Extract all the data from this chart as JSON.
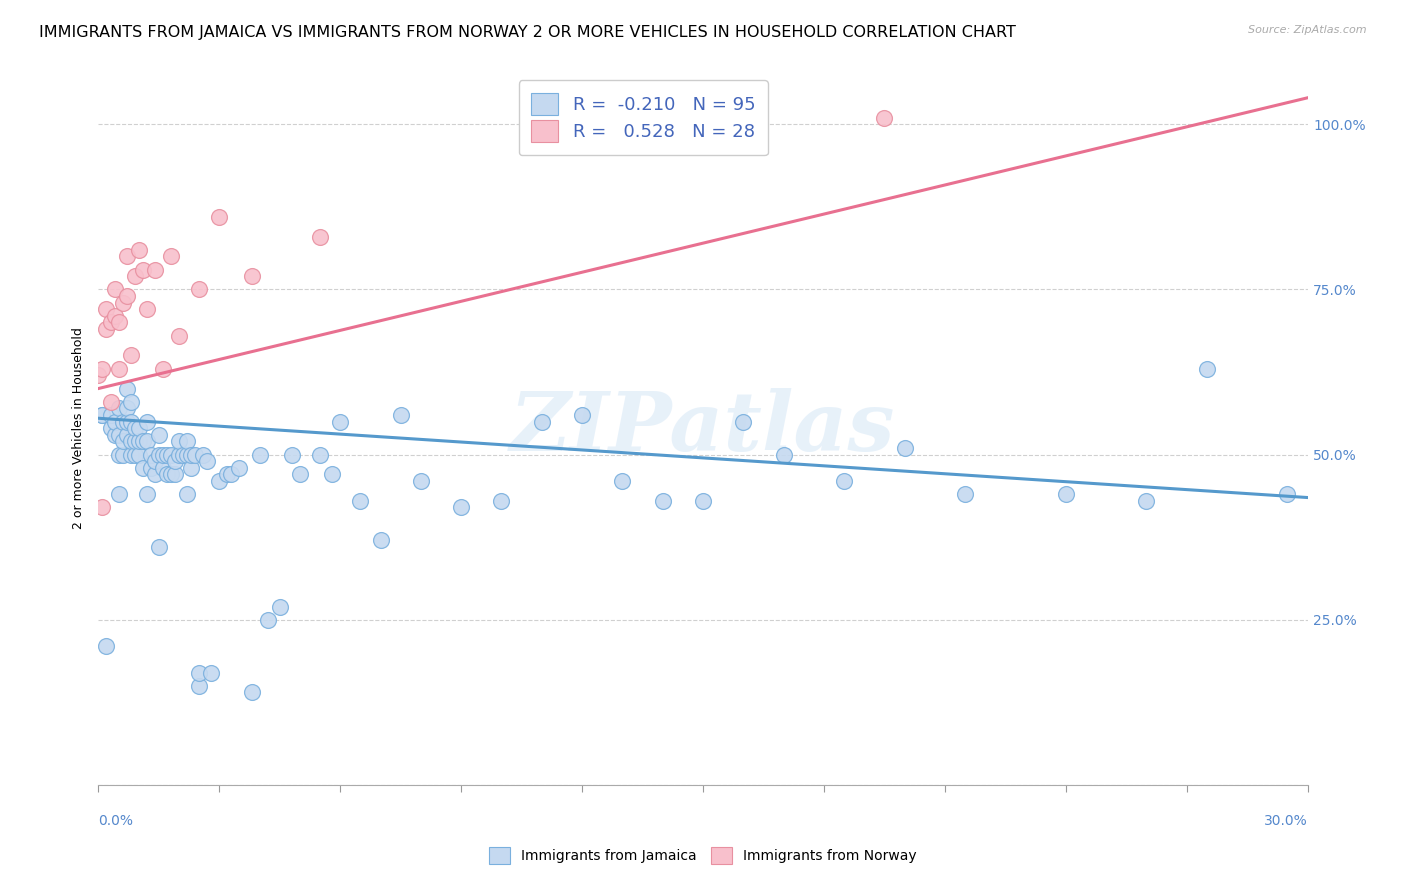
{
  "title": "IMMIGRANTS FROM JAMAICA VS IMMIGRANTS FROM NORWAY 2 OR MORE VEHICLES IN HOUSEHOLD CORRELATION CHART",
  "source": "Source: ZipAtlas.com",
  "ylabel": "2 or more Vehicles in Household",
  "xlim": [
    0.0,
    0.3
  ],
  "ylim": [
    0.0,
    1.08
  ],
  "watermark": "ZIPatlas",
  "legend_r_jamaica": "-0.210",
  "legend_n_jamaica": "95",
  "legend_r_norway": "0.528",
  "legend_n_norway": "28",
  "jamaica_face_color": "#c5d9f0",
  "norway_face_color": "#f8c0cc",
  "jamaica_edge_color": "#7ab0de",
  "norway_edge_color": "#e890a0",
  "jamaica_line_color": "#5599cc",
  "norway_line_color": "#e87090",
  "jamaica_scatter_x": [
    0.001,
    0.001,
    0.002,
    0.003,
    0.003,
    0.004,
    0.004,
    0.005,
    0.005,
    0.005,
    0.006,
    0.006,
    0.006,
    0.007,
    0.007,
    0.007,
    0.007,
    0.008,
    0.008,
    0.008,
    0.008,
    0.009,
    0.009,
    0.009,
    0.01,
    0.01,
    0.01,
    0.011,
    0.011,
    0.012,
    0.012,
    0.013,
    0.013,
    0.014,
    0.014,
    0.015,
    0.015,
    0.015,
    0.016,
    0.016,
    0.017,
    0.017,
    0.018,
    0.018,
    0.019,
    0.019,
    0.02,
    0.02,
    0.021,
    0.022,
    0.022,
    0.023,
    0.023,
    0.024,
    0.025,
    0.025,
    0.026,
    0.027,
    0.028,
    0.03,
    0.032,
    0.033,
    0.035,
    0.038,
    0.04,
    0.042,
    0.045,
    0.048,
    0.05,
    0.055,
    0.058,
    0.06,
    0.065,
    0.07,
    0.075,
    0.08,
    0.09,
    0.1,
    0.11,
    0.12,
    0.13,
    0.14,
    0.15,
    0.16,
    0.17,
    0.185,
    0.2,
    0.215,
    0.24,
    0.26,
    0.275,
    0.295,
    0.005,
    0.012,
    0.022
  ],
  "jamaica_scatter_y": [
    0.56,
    0.56,
    0.21,
    0.54,
    0.56,
    0.53,
    0.55,
    0.5,
    0.53,
    0.57,
    0.5,
    0.52,
    0.55,
    0.53,
    0.55,
    0.57,
    0.6,
    0.5,
    0.52,
    0.55,
    0.58,
    0.5,
    0.52,
    0.54,
    0.5,
    0.52,
    0.54,
    0.48,
    0.52,
    0.52,
    0.55,
    0.48,
    0.5,
    0.47,
    0.49,
    0.36,
    0.5,
    0.53,
    0.48,
    0.5,
    0.47,
    0.5,
    0.47,
    0.5,
    0.47,
    0.49,
    0.5,
    0.52,
    0.5,
    0.5,
    0.52,
    0.48,
    0.5,
    0.5,
    0.15,
    0.17,
    0.5,
    0.49,
    0.17,
    0.46,
    0.47,
    0.47,
    0.48,
    0.14,
    0.5,
    0.25,
    0.27,
    0.5,
    0.47,
    0.5,
    0.47,
    0.55,
    0.43,
    0.37,
    0.56,
    0.46,
    0.42,
    0.43,
    0.55,
    0.56,
    0.46,
    0.43,
    0.43,
    0.55,
    0.5,
    0.46,
    0.51,
    0.44,
    0.44,
    0.43,
    0.63,
    0.44,
    0.44,
    0.44,
    0.44
  ],
  "norway_scatter_x": [
    0.0,
    0.001,
    0.001,
    0.002,
    0.002,
    0.003,
    0.003,
    0.004,
    0.004,
    0.005,
    0.005,
    0.006,
    0.007,
    0.007,
    0.008,
    0.009,
    0.01,
    0.011,
    0.012,
    0.014,
    0.016,
    0.018,
    0.02,
    0.025,
    0.03,
    0.038,
    0.055,
    0.195
  ],
  "norway_scatter_y": [
    0.62,
    0.42,
    0.63,
    0.69,
    0.72,
    0.58,
    0.7,
    0.71,
    0.75,
    0.63,
    0.7,
    0.73,
    0.74,
    0.8,
    0.65,
    0.77,
    0.81,
    0.78,
    0.72,
    0.78,
    0.63,
    0.8,
    0.68,
    0.75,
    0.86,
    0.77,
    0.83,
    1.01
  ],
  "jamaica_trend_x": [
    0.0,
    0.3
  ],
  "jamaica_trend_y": [
    0.555,
    0.435
  ],
  "norway_trend_x": [
    0.0,
    0.3
  ],
  "norway_trend_y": [
    0.6,
    1.04
  ],
  "ytick_positions": [
    0.0,
    0.25,
    0.5,
    0.75,
    1.0
  ],
  "ytick_labels_right": [
    "",
    "25.0%",
    "50.0%",
    "75.0%",
    "100.0%"
  ],
  "background_color": "#ffffff",
  "grid_color": "#d0d0d0",
  "right_tick_color": "#5588cc",
  "value_text_color": "#4466bb",
  "title_fontsize": 11.5,
  "axis_label_fontsize": 9,
  "tick_fontsize": 10,
  "legend_fontsize": 13,
  "scatter_size": 130,
  "trend_linewidth": 2.2
}
